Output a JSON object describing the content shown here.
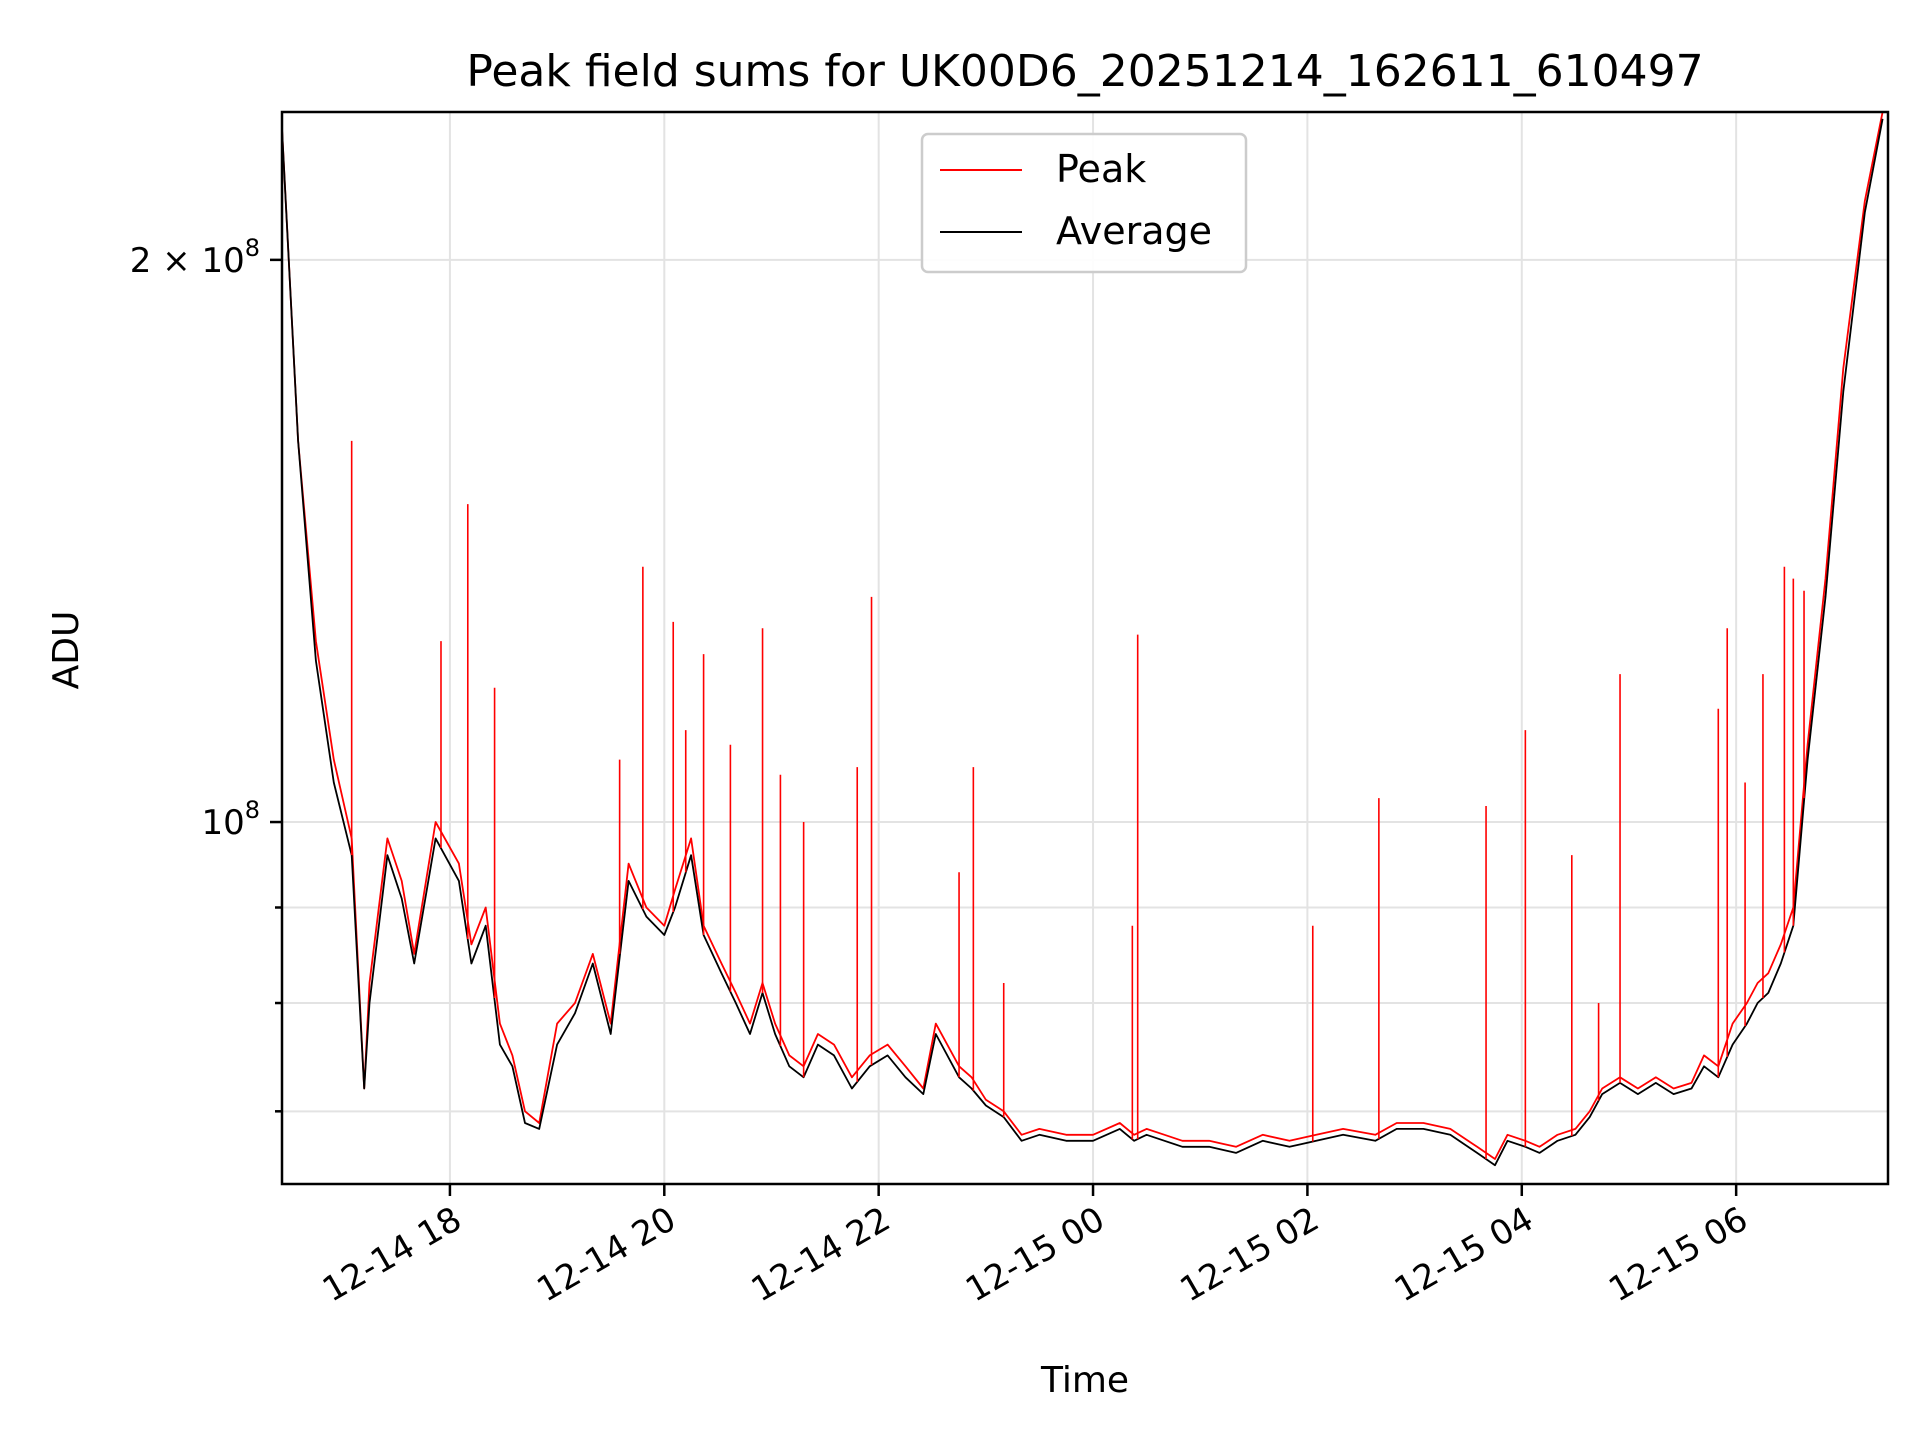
{
  "chart_data": {
    "type": "line",
    "title": "Peak field sums for UK00D6_20251214_162611_610497",
    "xlabel": "Time",
    "ylabel": "ADU",
    "yscale": "log",
    "grid": true,
    "legend": {
      "placement": "upper-center",
      "entries": [
        "Peak",
        "Average"
      ]
    },
    "xlim": [
      "2025-12-14 16:26",
      "2025-12-15 07:25"
    ],
    "ylim": [
      64000000,
      240000000
    ],
    "x_ticks": [
      {
        "value": "2025-12-14 18:00",
        "label": "12-14 18"
      },
      {
        "value": "2025-12-14 20:00",
        "label": "12-14 20"
      },
      {
        "value": "2025-12-14 22:00",
        "label": "12-14 22"
      },
      {
        "value": "2025-12-15 00:00",
        "label": "12-15 00"
      },
      {
        "value": "2025-12-15 02:00",
        "label": "12-15 02"
      },
      {
        "value": "2025-12-15 04:00",
        "label": "12-15 04"
      },
      {
        "value": "2025-12-15 06:00",
        "label": "12-15 06"
      }
    ],
    "y_ticks": [
      {
        "value": 100000000,
        "base": "10",
        "exp": "8"
      },
      {
        "value": 200000000,
        "base": "2 × 10",
        "exp": "8"
      }
    ],
    "y_minor_ticks": [
      70000000,
      80000000,
      90000000
    ],
    "series": [
      {
        "name": "Peak",
        "color": "#ff0000",
        "x": [
          "2025-12-14 16:26",
          "2025-12-14 16:35",
          "2025-12-14 16:45",
          "2025-12-14 16:55",
          "2025-12-14 17:05",
          "2025-12-14 17:12",
          "2025-12-14 17:15",
          "2025-12-14 17:25",
          "2025-12-14 17:33",
          "2025-12-14 17:40",
          "2025-12-14 17:52",
          "2025-12-14 18:05",
          "2025-12-14 18:12",
          "2025-12-14 18:20",
          "2025-12-14 18:28",
          "2025-12-14 18:35",
          "2025-12-14 18:42",
          "2025-12-14 18:50",
          "2025-12-14 19:00",
          "2025-12-14 19:10",
          "2025-12-14 19:20",
          "2025-12-14 19:30",
          "2025-12-14 19:40",
          "2025-12-14 19:50",
          "2025-12-14 20:00",
          "2025-12-14 20:06",
          "2025-12-14 20:15",
          "2025-12-14 20:22",
          "2025-12-14 20:32",
          "2025-12-14 20:40",
          "2025-12-14 20:48",
          "2025-12-14 20:55",
          "2025-12-14 21:02",
          "2025-12-14 21:10",
          "2025-12-14 21:18",
          "2025-12-14 21:26",
          "2025-12-14 21:35",
          "2025-12-14 21:45",
          "2025-12-14 21:55",
          "2025-12-14 22:05",
          "2025-12-14 22:15",
          "2025-12-14 22:25",
          "2025-12-14 22:32",
          "2025-12-14 22:45",
          "2025-12-14 22:52",
          "2025-12-14 23:00",
          "2025-12-14 23:10",
          "2025-12-14 23:20",
          "2025-12-14 23:30",
          "2025-12-14 23:45",
          "2025-12-15 00:00",
          "2025-12-15 00:15",
          "2025-12-15 00:23",
          "2025-12-15 00:30",
          "2025-12-15 00:40",
          "2025-12-15 00:50",
          "2025-12-15 01:05",
          "2025-12-15 01:20",
          "2025-12-15 01:35",
          "2025-12-15 01:50",
          "2025-12-15 02:05",
          "2025-12-15 02:20",
          "2025-12-15 02:38",
          "2025-12-15 02:50",
          "2025-12-15 03:05",
          "2025-12-15 03:20",
          "2025-12-15 03:35",
          "2025-12-15 03:45",
          "2025-12-15 03:52",
          "2025-12-15 04:02",
          "2025-12-15 04:10",
          "2025-12-15 04:20",
          "2025-12-15 04:30",
          "2025-12-15 04:38",
          "2025-12-15 04:45",
          "2025-12-15 04:55",
          "2025-12-15 05:05",
          "2025-12-15 05:15",
          "2025-12-15 05:25",
          "2025-12-15 05:35",
          "2025-12-15 05:42",
          "2025-12-15 05:50",
          "2025-12-15 05:58",
          "2025-12-15 06:06",
          "2025-12-15 06:12",
          "2025-12-15 06:18",
          "2025-12-15 06:25",
          "2025-12-15 06:32",
          "2025-12-15 06:40",
          "2025-12-15 06:50",
          "2025-12-15 07:00",
          "2025-12-15 07:12",
          "2025-12-15 07:22"
        ],
        "values": [
          235000000,
          160000000,
          125000000,
          108000000,
          98000000,
          72000000,
          82000000,
          98000000,
          93000000,
          85000000,
          100000000,
          95000000,
          86000000,
          90000000,
          78000000,
          75000000,
          70000000,
          69000000,
          78000000,
          80000000,
          85000000,
          78000000,
          95000000,
          90000000,
          88000000,
          92000000,
          98000000,
          88000000,
          84000000,
          81000000,
          78000000,
          82000000,
          78000000,
          75000000,
          74000000,
          77000000,
          76000000,
          73000000,
          75000000,
          76000000,
          74000000,
          72000000,
          78000000,
          74000000,
          73000000,
          71000000,
          70000000,
          68000000,
          68500000,
          68000000,
          68000000,
          69000000,
          68000000,
          68500000,
          68000000,
          67500000,
          67500000,
          67000000,
          68000000,
          67500000,
          68000000,
          68500000,
          68000000,
          69000000,
          69000000,
          68500000,
          67000000,
          66000000,
          68000000,
          67500000,
          67000000,
          68000000,
          68500000,
          70000000,
          72000000,
          73000000,
          72000000,
          73000000,
          72000000,
          72500000,
          75000000,
          74000000,
          78000000,
          80000000,
          82000000,
          83000000,
          86000000,
          90000000,
          110000000,
          135000000,
          175000000,
          215000000,
          240000000
        ]
      },
      {
        "name": "Average",
        "color": "#000000",
        "x": [
          "2025-12-14 16:26",
          "2025-12-14 16:35",
          "2025-12-14 16:45",
          "2025-12-14 16:55",
          "2025-12-14 17:05",
          "2025-12-14 17:12",
          "2025-12-14 17:15",
          "2025-12-14 17:25",
          "2025-12-14 17:33",
          "2025-12-14 17:40",
          "2025-12-14 17:52",
          "2025-12-14 18:05",
          "2025-12-14 18:12",
          "2025-12-14 18:20",
          "2025-12-14 18:28",
          "2025-12-14 18:35",
          "2025-12-14 18:42",
          "2025-12-14 18:50",
          "2025-12-14 19:00",
          "2025-12-14 19:10",
          "2025-12-14 19:20",
          "2025-12-14 19:30",
          "2025-12-14 19:40",
          "2025-12-14 19:50",
          "2025-12-14 20:00",
          "2025-12-14 20:06",
          "2025-12-14 20:15",
          "2025-12-14 20:22",
          "2025-12-14 20:32",
          "2025-12-14 20:40",
          "2025-12-14 20:48",
          "2025-12-14 20:55",
          "2025-12-14 21:02",
          "2025-12-14 21:10",
          "2025-12-14 21:18",
          "2025-12-14 21:26",
          "2025-12-14 21:35",
          "2025-12-14 21:45",
          "2025-12-14 21:55",
          "2025-12-14 22:05",
          "2025-12-14 22:15",
          "2025-12-14 22:25",
          "2025-12-14 22:32",
          "2025-12-14 22:45",
          "2025-12-14 22:52",
          "2025-12-14 23:00",
          "2025-12-14 23:10",
          "2025-12-14 23:20",
          "2025-12-14 23:30",
          "2025-12-14 23:45",
          "2025-12-15 00:00",
          "2025-12-15 00:15",
          "2025-12-15 00:23",
          "2025-12-15 00:30",
          "2025-12-15 00:40",
          "2025-12-15 00:50",
          "2025-12-15 01:05",
          "2025-12-15 01:20",
          "2025-12-15 01:35",
          "2025-12-15 01:50",
          "2025-12-15 02:05",
          "2025-12-15 02:20",
          "2025-12-15 02:38",
          "2025-12-15 02:50",
          "2025-12-15 03:05",
          "2025-12-15 03:20",
          "2025-12-15 03:35",
          "2025-12-15 03:45",
          "2025-12-15 03:52",
          "2025-12-15 04:02",
          "2025-12-15 04:10",
          "2025-12-15 04:20",
          "2025-12-15 04:30",
          "2025-12-15 04:38",
          "2025-12-15 04:45",
          "2025-12-15 04:55",
          "2025-12-15 05:05",
          "2025-12-15 05:15",
          "2025-12-15 05:25",
          "2025-12-15 05:35",
          "2025-12-15 05:42",
          "2025-12-15 05:50",
          "2025-12-15 05:58",
          "2025-12-15 06:06",
          "2025-12-15 06:12",
          "2025-12-15 06:18",
          "2025-12-15 06:25",
          "2025-12-15 06:32",
          "2025-12-15 06:40",
          "2025-12-15 06:50",
          "2025-12-15 07:00",
          "2025-12-15 07:12",
          "2025-12-15 07:22"
        ],
        "values": [
          235000000,
          160000000,
          122000000,
          105000000,
          96000000,
          72000000,
          80000000,
          96000000,
          91000000,
          84000000,
          98000000,
          93000000,
          84000000,
          88000000,
          76000000,
          74000000,
          69000000,
          68500000,
          76000000,
          79000000,
          84000000,
          77000000,
          93000000,
          89000000,
          87000000,
          90000000,
          96000000,
          87000000,
          83000000,
          80000000,
          77000000,
          81000000,
          77000000,
          74000000,
          73000000,
          76000000,
          75000000,
          72000000,
          74000000,
          75000000,
          73000000,
          71500000,
          77000000,
          73000000,
          72000000,
          70500000,
          69500000,
          67500000,
          68000000,
          67500000,
          67500000,
          68500000,
          67500000,
          68000000,
          67500000,
          67000000,
          67000000,
          66500000,
          67500000,
          67000000,
          67500000,
          68000000,
          67500000,
          68500000,
          68500000,
          68000000,
          66500000,
          65500000,
          67500000,
          67000000,
          66500000,
          67500000,
          68000000,
          69500000,
          71500000,
          72500000,
          71500000,
          72500000,
          71500000,
          72000000,
          74000000,
          73000000,
          76000000,
          78000000,
          80000000,
          81000000,
          84000000,
          88000000,
          108000000,
          132000000,
          170000000,
          212000000,
          238000000
        ]
      }
    ],
    "peak_spikes": [
      {
        "x": "2025-12-14 17:05",
        "value": 160000000
      },
      {
        "x": "2025-12-14 17:55",
        "value": 125000000
      },
      {
        "x": "2025-12-14 18:10",
        "value": 148000000
      },
      {
        "x": "2025-12-14 18:25",
        "value": 118000000
      },
      {
        "x": "2025-12-14 19:35",
        "value": 108000000
      },
      {
        "x": "2025-12-14 19:48",
        "value": 137000000
      },
      {
        "x": "2025-12-14 20:05",
        "value": 128000000
      },
      {
        "x": "2025-12-14 20:12",
        "value": 112000000
      },
      {
        "x": "2025-12-14 20:22",
        "value": 123000000
      },
      {
        "x": "2025-12-14 20:37",
        "value": 110000000
      },
      {
        "x": "2025-12-14 20:55",
        "value": 127000000
      },
      {
        "x": "2025-12-14 21:05",
        "value": 106000000
      },
      {
        "x": "2025-12-14 21:18",
        "value": 100000000
      },
      {
        "x": "2025-12-14 21:48",
        "value": 107000000
      },
      {
        "x": "2025-12-14 21:56",
        "value": 132000000
      },
      {
        "x": "2025-12-14 22:45",
        "value": 94000000
      },
      {
        "x": "2025-12-14 22:53",
        "value": 107000000
      },
      {
        "x": "2025-12-14 23:10",
        "value": 82000000
      },
      {
        "x": "2025-12-15 00:22",
        "value": 88000000
      },
      {
        "x": "2025-12-15 00:25",
        "value": 126000000
      },
      {
        "x": "2025-12-15 02:03",
        "value": 88000000
      },
      {
        "x": "2025-12-15 02:40",
        "value": 103000000
      },
      {
        "x": "2025-12-15 03:40",
        "value": 102000000
      },
      {
        "x": "2025-12-15 04:02",
        "value": 112000000
      },
      {
        "x": "2025-12-15 04:28",
        "value": 96000000
      },
      {
        "x": "2025-12-15 04:43",
        "value": 80000000
      },
      {
        "x": "2025-12-15 04:55",
        "value": 120000000
      },
      {
        "x": "2025-12-15 05:50",
        "value": 115000000
      },
      {
        "x": "2025-12-15 05:55",
        "value": 127000000
      },
      {
        "x": "2025-12-15 06:05",
        "value": 105000000
      },
      {
        "x": "2025-12-15 06:15",
        "value": 120000000
      },
      {
        "x": "2025-12-15 06:27",
        "value": 137000000
      },
      {
        "x": "2025-12-15 06:32",
        "value": 135000000
      },
      {
        "x": "2025-12-15 06:38",
        "value": 133000000
      }
    ]
  }
}
